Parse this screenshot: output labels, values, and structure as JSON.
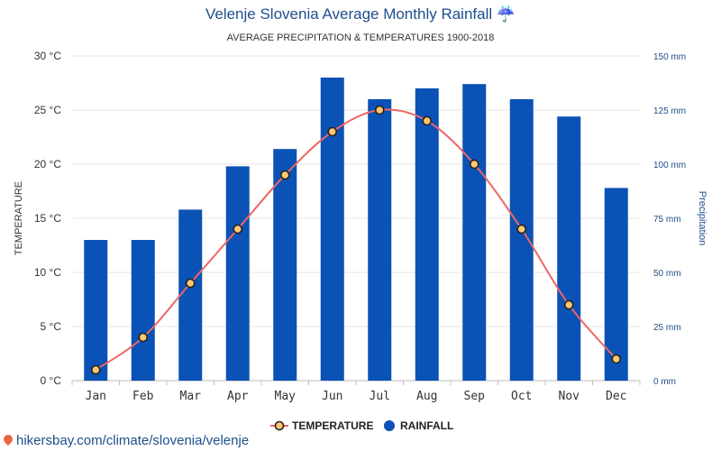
{
  "title": "Velenje Slovenia Average Monthly Rainfall ☔",
  "subtitle": "AVERAGE PRECIPITATION & TEMPERATURES 1900-2018",
  "credit": "hikersbay.com/climate/slovenia/velenje",
  "colors": {
    "title": "#1f4e8c",
    "bar": "#0a52b5",
    "line": "#ee6666",
    "marker_fill": "#ffc870",
    "marker_stroke": "#222222",
    "right_axis": "#1f4e8c",
    "grid": "#e6e6e6"
  },
  "chart_data": {
    "type": "bar",
    "categories": [
      "Jan",
      "Feb",
      "Mar",
      "Apr",
      "May",
      "Jun",
      "Jul",
      "Aug",
      "Sep",
      "Oct",
      "Nov",
      "Dec"
    ],
    "series": [
      {
        "name": "RAINFALL",
        "type": "bar",
        "axis": "right",
        "values": [
          65,
          65,
          79,
          99,
          107,
          140,
          130,
          135,
          137,
          130,
          122,
          89
        ]
      },
      {
        "name": "TEMPERATURE",
        "type": "line",
        "axis": "left",
        "values": [
          1,
          4,
          9,
          14,
          19,
          23,
          25,
          24,
          20,
          14,
          7,
          2
        ]
      }
    ],
    "left_axis": {
      "label": "TEMPERATURE",
      "ylim": [
        0,
        30
      ],
      "ticks": [
        "0 °C",
        "5 °C",
        "10 °C",
        "15 °C",
        "20 °C",
        "25 °C",
        "30 °C"
      ]
    },
    "right_axis": {
      "label": "Precipitation",
      "ylim": [
        0,
        150
      ],
      "ticks": [
        "0 mm",
        "25 mm",
        "50 mm",
        "75 mm",
        "100 mm",
        "125 mm",
        "150 mm"
      ]
    },
    "grid": true,
    "legend": {
      "placement": "bottom-center",
      "items": [
        "TEMPERATURE",
        "RAINFALL"
      ]
    }
  }
}
